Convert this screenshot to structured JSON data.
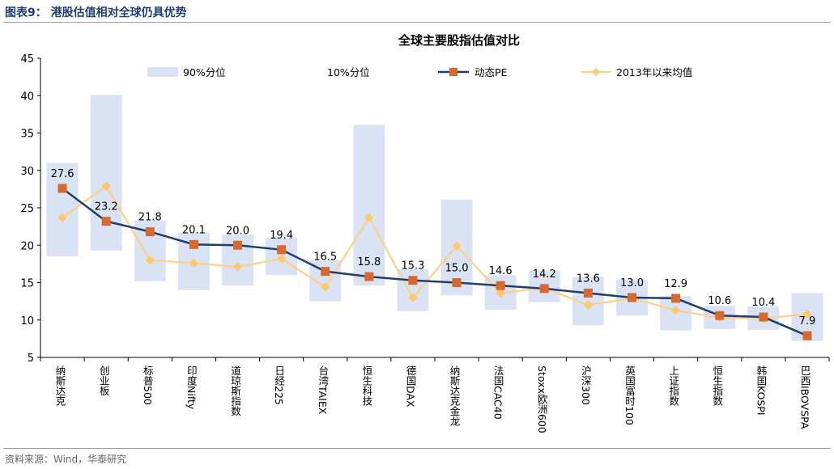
{
  "header": {
    "figure_title": "图表9：  港股估值相对全球仍具优势"
  },
  "footer": {
    "source": "资料来源：Wind，华泰研究"
  },
  "chart_data": {
    "type": "bar+line",
    "title": "全球主要股指估值对比",
    "ylim": [
      5,
      45
    ],
    "yticks": [
      5,
      10,
      15,
      20,
      25,
      30,
      35,
      40,
      45
    ],
    "categories": [
      "纳斯达克",
      "创业板",
      "标普500",
      "印度Nifty",
      "道琼斯指数",
      "日经225",
      "台湾TAIEX",
      "恒生科技",
      "德国DAX",
      "纳斯达克金龙",
      "法国CAC40",
      "Stoxx欧洲600",
      "沪深300",
      "英国富时100",
      "上证指数",
      "恒生指数",
      "韩国KOSPI",
      "巴西IBOVSPA"
    ],
    "legend": [
      "90%分位",
      "10%分位",
      "动态PE",
      "2013年以来均值"
    ],
    "series": [
      {
        "name": "90%分位",
        "values": [
          31.0,
          40.1,
          23.3,
          21.7,
          21.4,
          21.0,
          18.0,
          36.1,
          16.8,
          26.1,
          16.0,
          16.6,
          15.7,
          15.4,
          13.2,
          11.9,
          11.8,
          13.6
        ]
      },
      {
        "name": "10%分位",
        "values": [
          18.5,
          19.3,
          15.2,
          14.0,
          14.6,
          16.0,
          12.5,
          14.6,
          11.2,
          13.3,
          11.4,
          12.4,
          9.3,
          10.6,
          8.6,
          8.8,
          8.7,
          7.2
        ]
      },
      {
        "name": "动态PE",
        "values": [
          27.6,
          23.2,
          21.8,
          20.1,
          20.0,
          19.4,
          16.5,
          15.8,
          15.3,
          15.0,
          14.6,
          14.2,
          13.6,
          13.0,
          12.9,
          10.6,
          10.4,
          7.9
        ]
      },
      {
        "name": "2013年以来均值",
        "values": [
          23.7,
          27.9,
          18.0,
          17.6,
          17.1,
          18.2,
          14.4,
          23.7,
          13.0,
          19.9,
          13.6,
          14.3,
          12.0,
          12.9,
          11.3,
          10.3,
          10.2,
          10.8
        ]
      }
    ],
    "data_labels": [
      "27.6",
      "23.2",
      "21.8",
      "20.1",
      "20.0",
      "19.4",
      "16.5",
      "15.8",
      "15.3",
      "15.0",
      "14.6",
      "14.2",
      "13.6",
      "13.0",
      "12.9",
      "10.6",
      "10.4",
      "7.9"
    ],
    "colors": {
      "band": "#dae3f3",
      "pe_line": "#1f3f70",
      "pe_marker": "#d6692e",
      "mean_line": "#fdd08a",
      "mean_marker": "#fcc870",
      "axis": "#000000"
    }
  }
}
